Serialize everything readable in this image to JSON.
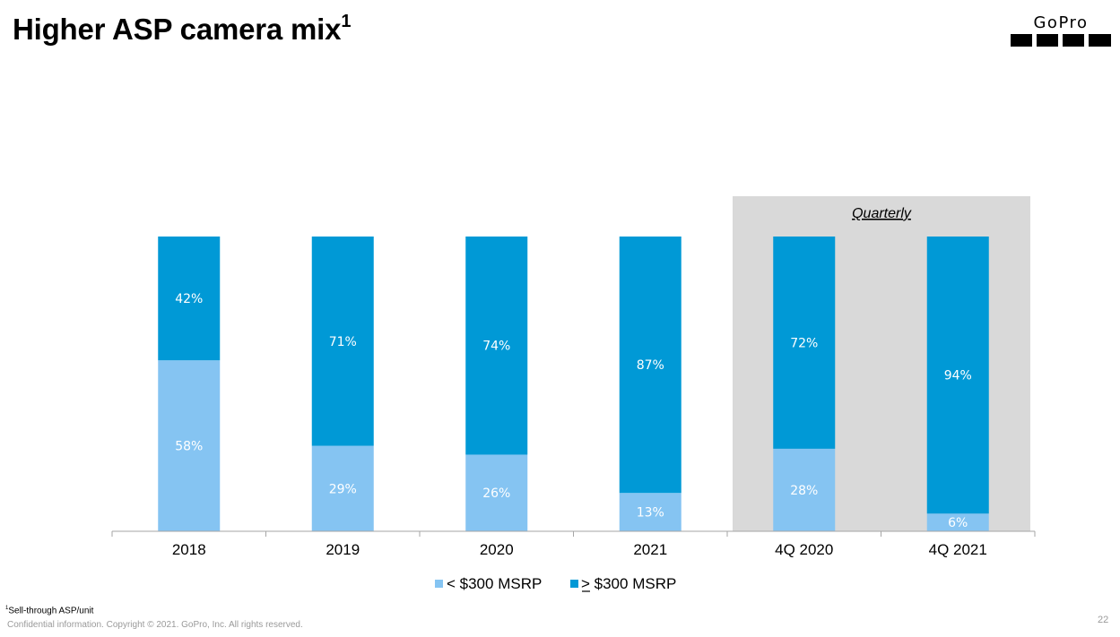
{
  "slide": {
    "title": "Higher ASP camera mix",
    "title_superscript": "1",
    "logo_text": "GoPro",
    "footnote_marker": "1",
    "footnote_text": "Sell-through ASP/unit",
    "confidential": "Confidential information. Copyright © 2021. GoPro, Inc. All rights reserved.",
    "page_number": "22"
  },
  "colors": {
    "light_blue": "#85C4F2",
    "dark_blue": "#0099D6",
    "quarterly_panel": "#D9D9D9",
    "axis": "#A6A6A6"
  },
  "chart_data": {
    "type": "bar",
    "stacked": true,
    "categories": [
      "2018",
      "2019",
      "2020",
      "2021",
      "4Q 2020",
      "4Q 2021"
    ],
    "series": [
      {
        "name": "<  $300 MSRP",
        "values": [
          58,
          29,
          26,
          13,
          28,
          6
        ],
        "labels": [
          "58%",
          "29%",
          "26%",
          "13%",
          "28%",
          "6%"
        ],
        "color": "#85C4F2"
      },
      {
        "name": "> $300 MSRP",
        "values": [
          42,
          71,
          74,
          87,
          72,
          94
        ],
        "labels": [
          "42%",
          "71%",
          "74%",
          "87%",
          "72%",
          "94%"
        ],
        "color": "#0099D6"
      }
    ],
    "ylim": [
      0,
      100
    ],
    "title": "",
    "xlabel": "",
    "ylabel": "",
    "legend_position": "bottom",
    "annotation": {
      "text": "Quarterly",
      "applies_to": [
        "4Q 2020",
        "4Q 2021"
      ]
    }
  }
}
